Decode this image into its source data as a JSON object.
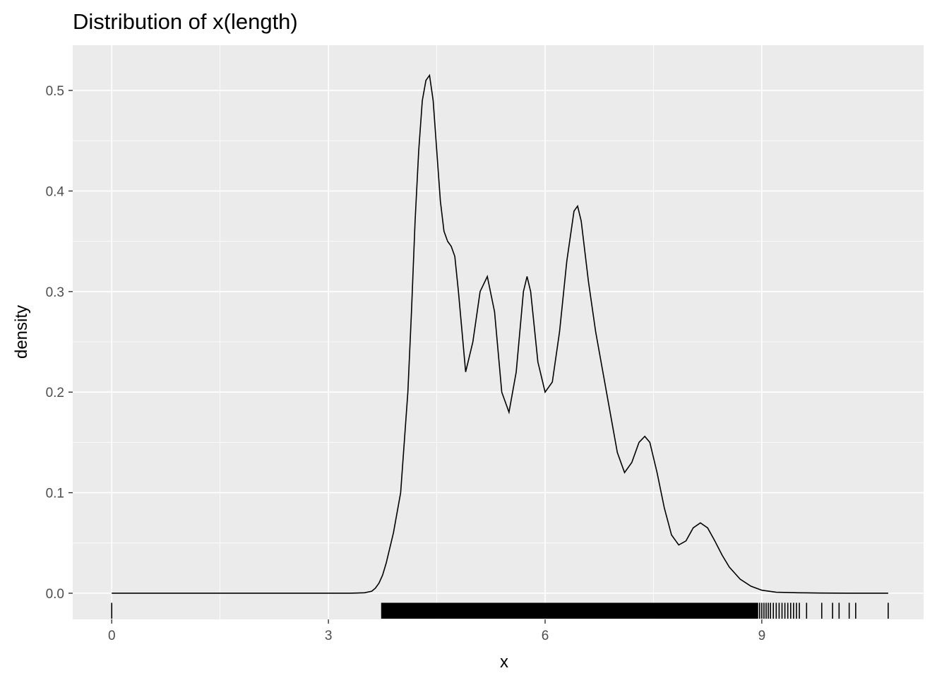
{
  "chart_data": {
    "type": "line",
    "title": "Distribution of x(length)",
    "xlabel": "x",
    "ylabel": "density",
    "xlim": [
      -0.54,
      11.24
    ],
    "ylim": [
      -0.026,
      0.545
    ],
    "x_ticks": [
      0,
      3,
      6,
      9
    ],
    "x_tick_labels": [
      "0",
      "3",
      "6",
      "9"
    ],
    "y_ticks": [
      0.0,
      0.1,
      0.2,
      0.3,
      0.4,
      0.5
    ],
    "y_tick_labels": [
      "0.0",
      "0.1",
      "0.2",
      "0.3",
      "0.4",
      "0.5"
    ],
    "grid": true,
    "colors": {
      "panel": "#ebebeb",
      "grid": "#ffffff",
      "line": "#000000"
    },
    "series": [
      {
        "x": [
          0,
          0.5,
          1,
          1.5,
          2,
          2.5,
          3,
          3.3,
          3.5,
          3.6,
          3.65,
          3.7,
          3.75,
          3.8,
          3.85,
          3.9,
          4.0,
          4.1,
          4.15,
          4.2,
          4.25,
          4.3,
          4.35,
          4.4,
          4.45,
          4.5,
          4.55,
          4.6,
          4.65,
          4.7,
          4.75,
          4.8,
          4.9,
          5.0,
          5.1,
          5.2,
          5.3,
          5.4,
          5.5,
          5.6,
          5.7,
          5.75,
          5.8,
          5.9,
          6.0,
          6.1,
          6.2,
          6.3,
          6.4,
          6.45,
          6.5,
          6.6,
          6.7,
          6.8,
          6.9,
          7.0,
          7.1,
          7.2,
          7.3,
          7.38,
          7.45,
          7.55,
          7.65,
          7.75,
          7.85,
          7.95,
          8.05,
          8.15,
          8.25,
          8.35,
          8.45,
          8.55,
          8.7,
          8.85,
          9.0,
          9.2,
          9.5,
          9.8,
          10.2,
          10.75
        ],
        "y": [
          0.0,
          0.0,
          0.0,
          0.0,
          0.0,
          0.0,
          0.0,
          0.0,
          0.0005,
          0.002,
          0.005,
          0.01,
          0.018,
          0.03,
          0.045,
          0.06,
          0.1,
          0.2,
          0.28,
          0.37,
          0.44,
          0.49,
          0.51,
          0.515,
          0.49,
          0.44,
          0.39,
          0.36,
          0.35,
          0.345,
          0.335,
          0.3,
          0.22,
          0.25,
          0.3,
          0.315,
          0.28,
          0.2,
          0.18,
          0.22,
          0.3,
          0.315,
          0.3,
          0.23,
          0.2,
          0.21,
          0.26,
          0.33,
          0.38,
          0.385,
          0.37,
          0.31,
          0.26,
          0.22,
          0.18,
          0.14,
          0.12,
          0.13,
          0.15,
          0.156,
          0.15,
          0.12,
          0.085,
          0.058,
          0.048,
          0.052,
          0.065,
          0.07,
          0.065,
          0.052,
          0.038,
          0.026,
          0.014,
          0.007,
          0.003,
          0.001,
          0.0005,
          0.0002,
          0.0,
          0.0
        ]
      }
    ],
    "rug": {
      "sparse": [
        0,
        9.62,
        9.83,
        9.98,
        10.07,
        10.21,
        10.3,
        10.75
      ],
      "dense_range": [
        3.73,
        8.95
      ],
      "tail": [
        8.97,
        9.0,
        9.03,
        9.06,
        9.09,
        9.12,
        9.16,
        9.2,
        9.24,
        9.28,
        9.32,
        9.36,
        9.4,
        9.44,
        9.48,
        9.52
      ]
    }
  }
}
